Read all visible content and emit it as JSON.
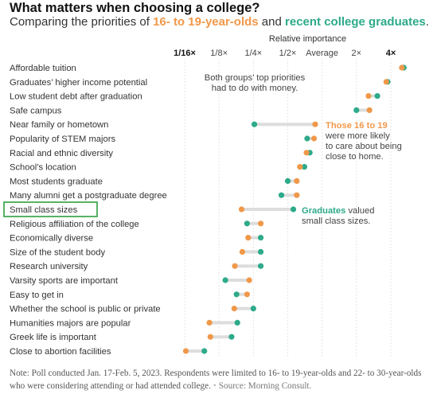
{
  "title": "What matters when choosing a college?",
  "subtitle": {
    "part1": "Comparing the priorities of ",
    "group1": "16- to 19-year-olds",
    "part2": " and ",
    "group2": "recent college graduates",
    "part3": "."
  },
  "colors": {
    "teens": "#f0984a",
    "graduates": "#2daa8a",
    "connector": "#dddddd",
    "highlight_box": "#2e9e3e"
  },
  "chart_data": {
    "type": "dot",
    "title": "What matters when choosing a college?",
    "xlabel": "Relative importance",
    "x_scale": "log2",
    "xlim": [
      0.0625,
      5.5
    ],
    "x_ticks": [
      {
        "value": 0.0625,
        "label": "1/16×",
        "bold": true
      },
      {
        "value": 0.125,
        "label": "1/8×",
        "bold": false
      },
      {
        "value": 0.25,
        "label": "1/4×",
        "bold": false
      },
      {
        "value": 0.5,
        "label": "1/2×",
        "bold": false
      },
      {
        "value": 1,
        "label": "Average",
        "bold": false
      },
      {
        "value": 2,
        "label": "2×",
        "bold": false
      },
      {
        "value": 4,
        "label": "4×",
        "bold": true
      }
    ],
    "series_names": {
      "teens": "16- to 19-year-olds",
      "graduates": "recent college graduates"
    },
    "categories": [
      {
        "label": "Affordable tuition",
        "teens": 5.0,
        "graduates": 5.2
      },
      {
        "label": "Graduates’ higher income potential",
        "teens": 3.65,
        "graduates": 3.75
      },
      {
        "label": "Low student debt after graduation",
        "teens": 2.55,
        "graduates": 3.05
      },
      {
        "label": "Safe campus",
        "teens": 2.6,
        "graduates": 2.0
      },
      {
        "label": "Near family or hometown",
        "teens": 0.87,
        "graduates": 0.255
      },
      {
        "label": "Popularity of STEM majors",
        "teens": 0.85,
        "graduates": 0.74
      },
      {
        "label": "Racial and ethnic diversity",
        "teens": 0.73,
        "graduates": 0.78
      },
      {
        "label": "School’s location",
        "teens": 0.64,
        "graduates": 0.7
      },
      {
        "label": "Most students graduate",
        "teens": 0.6,
        "graduates": 0.5
      },
      {
        "label": "Many alumni get a postgraduate degree",
        "teens": 0.6,
        "graduates": 0.44
      },
      {
        "label": "Small class sizes",
        "teens": 0.197,
        "graduates": 0.56
      },
      {
        "label": "Religious affiliation of the college",
        "teens": 0.29,
        "graduates": 0.22
      },
      {
        "label": "Economically diverse",
        "teens": 0.225,
        "graduates": 0.29
      },
      {
        "label": "Size of the student body",
        "teens": 0.2,
        "graduates": 0.29
      },
      {
        "label": "Research university",
        "teens": 0.172,
        "graduates": 0.29
      },
      {
        "label": "Varsity sports are important",
        "teens": 0.23,
        "graduates": 0.142
      },
      {
        "label": "Easy to get in",
        "teens": 0.22,
        "graduates": 0.178
      },
      {
        "label": "Whether the school is public or private",
        "teens": 0.17,
        "graduates": 0.25
      },
      {
        "label": "Humanities majors are popular",
        "teens": 0.103,
        "graduates": 0.181
      },
      {
        "label": "Greek life is important",
        "teens": 0.105,
        "graduates": 0.161
      },
      {
        "label": "Close to abortion facilities",
        "teens": 0.064,
        "graduates": 0.093
      }
    ],
    "highlighted_category": "Small class sizes",
    "annotations": [
      {
        "id": "money",
        "lines": [
          "Both groups’ top priorities",
          "had to do with money."
        ]
      },
      {
        "id": "teens-home",
        "lines": [
          {
            "bold": "Those 16 to 19",
            "rest": ""
          },
          {
            "bold": "",
            "rest": "were more likely"
          },
          {
            "bold": "",
            "rest": "to care about being"
          },
          {
            "bold": "",
            "rest": "close to home."
          }
        ]
      },
      {
        "id": "grads-class",
        "lines": [
          {
            "bold": "Graduates",
            "rest": " valued"
          },
          {
            "bold": "",
            "rest": "small class sizes."
          }
        ]
      }
    ]
  },
  "note": {
    "text": "Note: Poll conducted Jan. 17-Feb. 5, 2023. Respondents were limited to 16- to 19-year-olds and 22- to 30-year-olds who were considering attending or had attended college.",
    "source": "Source: Morning Consult."
  }
}
